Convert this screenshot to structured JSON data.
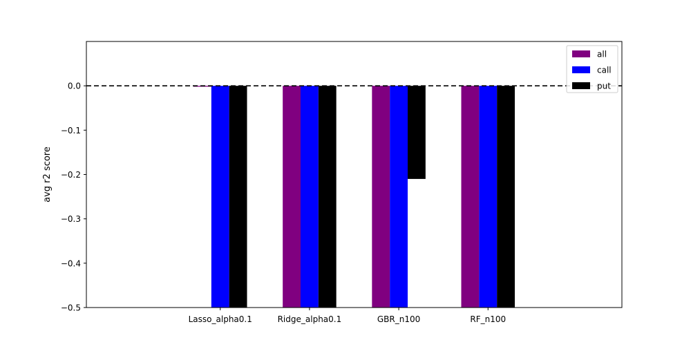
{
  "chart_data": {
    "type": "bar",
    "title": "",
    "xlabel": "",
    "ylabel": "avg r2 score",
    "categories": [
      "Lasso_alpha0.1",
      "Ridge_alpha0.1",
      "GBR_n100",
      "RF_n100"
    ],
    "series": [
      {
        "name": "all",
        "color": "#800080",
        "values": [
          -0.002,
          -0.52,
          -0.52,
          -0.52
        ]
      },
      {
        "name": "call",
        "color": "#0000ff",
        "values": [
          -0.52,
          -0.52,
          -0.52,
          -0.52
        ]
      },
      {
        "name": "put",
        "color": "#000000",
        "values": [
          -0.52,
          -0.52,
          -0.21,
          -0.52
        ]
      }
    ],
    "ylim": [
      -0.5,
      0.1
    ],
    "yticks": [
      -0.5,
      -0.4,
      -0.3,
      -0.2,
      -0.1,
      0.0
    ],
    "ytick_labels": [
      "−0.5",
      "−0.4",
      "−0.3",
      "−0.2",
      "−0.1",
      "0.0"
    ],
    "reference_line": {
      "y": 0.0,
      "style": "dashed",
      "color": "#000000"
    },
    "grid": false,
    "legend_position": "top-right"
  }
}
